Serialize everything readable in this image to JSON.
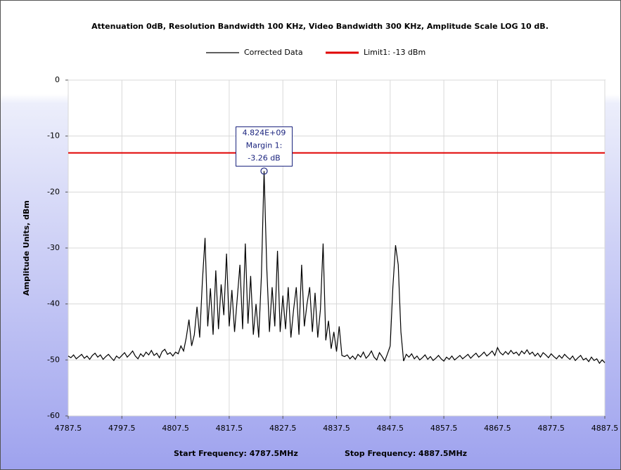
{
  "chart_data": {
    "type": "line",
    "title": "Attenuation 0dB, Resolution Bandwidth 100 KHz, Video Bandwidth 300 KHz, Amplitude Scale LOG 10 dB.",
    "y_label": "Amplitude Units, dBm",
    "footer": [
      "Start Frequency: 4787.5MHz",
      "Stop Frequency: 4887.5MHz"
    ],
    "xlim": [
      4787.5,
      4887.5
    ],
    "xticks": [
      4787.5,
      4797.5,
      4807.5,
      4817.5,
      4827.5,
      4837.5,
      4847.5,
      4857.5,
      4867.5,
      4877.5,
      4887.5
    ],
    "ylim": [
      -60,
      0
    ],
    "yticks": [
      0,
      -10,
      -20,
      -30,
      -40,
      -50,
      -60
    ],
    "grid": true,
    "legend": "top",
    "series": [
      {
        "name": "Corrected Data",
        "color": "#000000",
        "x": [
          4787.5,
          4788,
          4788.5,
          4789,
          4789.5,
          4790,
          4790.5,
          4791,
          4791.5,
          4792,
          4792.5,
          4793,
          4793.5,
          4794,
          4794.5,
          4795,
          4795.5,
          4796,
          4796.5,
          4797,
          4797.5,
          4798,
          4798.5,
          4799,
          4799.5,
          4800,
          4800.5,
          4801,
          4801.5,
          4802,
          4802.5,
          4803,
          4803.5,
          4804,
          4804.5,
          4805,
          4805.5,
          4806,
          4806.5,
          4807,
          4807.5,
          4808,
          4808.5,
          4809,
          4809.5,
          4810,
          4810.5,
          4811,
          4811.5,
          4812,
          4812.5,
          4813,
          4813.5,
          4814,
          4814.5,
          4815,
          4815.5,
          4816,
          4816.5,
          4817,
          4817.5,
          4818,
          4818.5,
          4819,
          4819.5,
          4820,
          4820.5,
          4821,
          4821.5,
          4822,
          4822.5,
          4823,
          4823.5,
          4824,
          4824.5,
          4825,
          4825.5,
          4826,
          4826.5,
          4827,
          4827.5,
          4828,
          4828.5,
          4829,
          4829.5,
          4830,
          4830.5,
          4831,
          4831.5,
          4832,
          4832.5,
          4833,
          4833.5,
          4834,
          4834.5,
          4835,
          4835.5,
          4836,
          4836.5,
          4837,
          4837.5,
          4838,
          4838.5,
          4839,
          4839.5,
          4840,
          4840.5,
          4841,
          4841.5,
          4842,
          4842.5,
          4843,
          4843.5,
          4844,
          4844.5,
          4845,
          4845.5,
          4846,
          4846.5,
          4847,
          4847.5,
          4848,
          4848.5,
          4849,
          4849.5,
          4850,
          4850.5,
          4851,
          4851.5,
          4852,
          4852.5,
          4853,
          4853.5,
          4854,
          4854.5,
          4855,
          4855.5,
          4856,
          4856.5,
          4857,
          4857.5,
          4858,
          4858.5,
          4859,
          4859.5,
          4860,
          4860.5,
          4861,
          4861.5,
          4862,
          4862.5,
          4863,
          4863.5,
          4864,
          4864.5,
          4865,
          4865.5,
          4866,
          4866.5,
          4867,
          4867.5,
          4868,
          4868.5,
          4869,
          4869.5,
          4870,
          4870.5,
          4871,
          4871.5,
          4872,
          4872.5,
          4873,
          4873.5,
          4874,
          4874.5,
          4875,
          4875.5,
          4876,
          4876.5,
          4877,
          4877.5,
          4878,
          4878.5,
          4879,
          4879.5,
          4880,
          4880.5,
          4881,
          4881.5,
          4882,
          4882.5,
          4883,
          4883.5,
          4884,
          4884.5,
          4885,
          4885.5,
          4886,
          4886.5,
          4887,
          4887.5
        ],
        "values": [
          -49.3,
          -49.6,
          -49.1,
          -49.8,
          -49.4,
          -49.0,
          -49.7,
          -49.3,
          -49.9,
          -49.2,
          -48.8,
          -49.5,
          -49.1,
          -49.9,
          -49.4,
          -49.0,
          -49.6,
          -50.1,
          -49.3,
          -49.7,
          -49.2,
          -48.7,
          -49.5,
          -49.0,
          -48.4,
          -49.3,
          -49.8,
          -48.9,
          -49.4,
          -48.6,
          -49.1,
          -48.3,
          -49.2,
          -48.8,
          -49.6,
          -48.5,
          -48.1,
          -49.0,
          -48.7,
          -49.3,
          -48.6,
          -48.9,
          -47.5,
          -48.4,
          -46.0,
          -42.8,
          -47.5,
          -45.5,
          -40.5,
          -46.0,
          -36.0,
          -28.2,
          -44.0,
          -37.2,
          -45.5,
          -34.0,
          -44.5,
          -36.5,
          -42.0,
          -31.0,
          -44.0,
          -37.5,
          -45.0,
          -39.0,
          -33.0,
          -44.5,
          -29.2,
          -43.5,
          -35.0,
          -45.5,
          -40.0,
          -46.0,
          -35.0,
          -16.26,
          -33.5,
          -45.0,
          -37.0,
          -44.0,
          -30.5,
          -45.0,
          -38.5,
          -44.5,
          -37.0,
          -46.0,
          -41.0,
          -37.0,
          -45.5,
          -33.0,
          -44.0,
          -40.0,
          -37.0,
          -45.0,
          -38.0,
          -46.0,
          -41.0,
          -29.2,
          -46.5,
          -43.0,
          -48.0,
          -45.0,
          -48.5,
          -44.0,
          -49.2,
          -49.4,
          -49.1,
          -49.8,
          -49.3,
          -49.9,
          -49.0,
          -49.5,
          -48.6,
          -49.7,
          -49.2,
          -48.4,
          -49.5,
          -50.0,
          -48.7,
          -49.4,
          -50.2,
          -48.9,
          -47.5,
          -37.0,
          -29.5,
          -33.0,
          -45.0,
          -50.2,
          -49.0,
          -49.5,
          -48.9,
          -49.8,
          -49.3,
          -50.0,
          -49.6,
          -49.1,
          -49.9,
          -49.4,
          -50.1,
          -49.7,
          -49.2,
          -49.8,
          -50.2,
          -49.5,
          -49.9,
          -49.3,
          -50.0,
          -49.6,
          -49.2,
          -49.8,
          -49.4,
          -49.0,
          -49.7,
          -49.2,
          -48.8,
          -49.5,
          -49.1,
          -48.6,
          -49.3,
          -48.9,
          -48.4,
          -49.2,
          -47.8,
          -48.7,
          -49.1,
          -48.5,
          -49.0,
          -48.3,
          -48.9,
          -48.6,
          -49.2,
          -48.4,
          -48.9,
          -48.2,
          -49.0,
          -48.6,
          -49.3,
          -48.8,
          -49.5,
          -48.7,
          -49.1,
          -49.6,
          -48.9,
          -49.4,
          -49.8,
          -49.2,
          -49.7,
          -49.0,
          -49.5,
          -49.9,
          -49.3,
          -50.1,
          -49.6,
          -49.2,
          -50.0,
          -49.7,
          -50.3,
          -49.5,
          -50.1,
          -49.8,
          -50.6,
          -50.0,
          -50.5
        ]
      },
      {
        "name": "Limit1: -13 dBm",
        "color": "#e00000",
        "x": [
          4787.5,
          4887.5
        ],
        "values": [
          -13,
          -13
        ]
      }
    ],
    "marker": {
      "x": 4824,
      "y": -16.26,
      "label_lines": [
        "4.824E+09",
        "Margin 1:",
        "-3.26 dB"
      ]
    }
  }
}
